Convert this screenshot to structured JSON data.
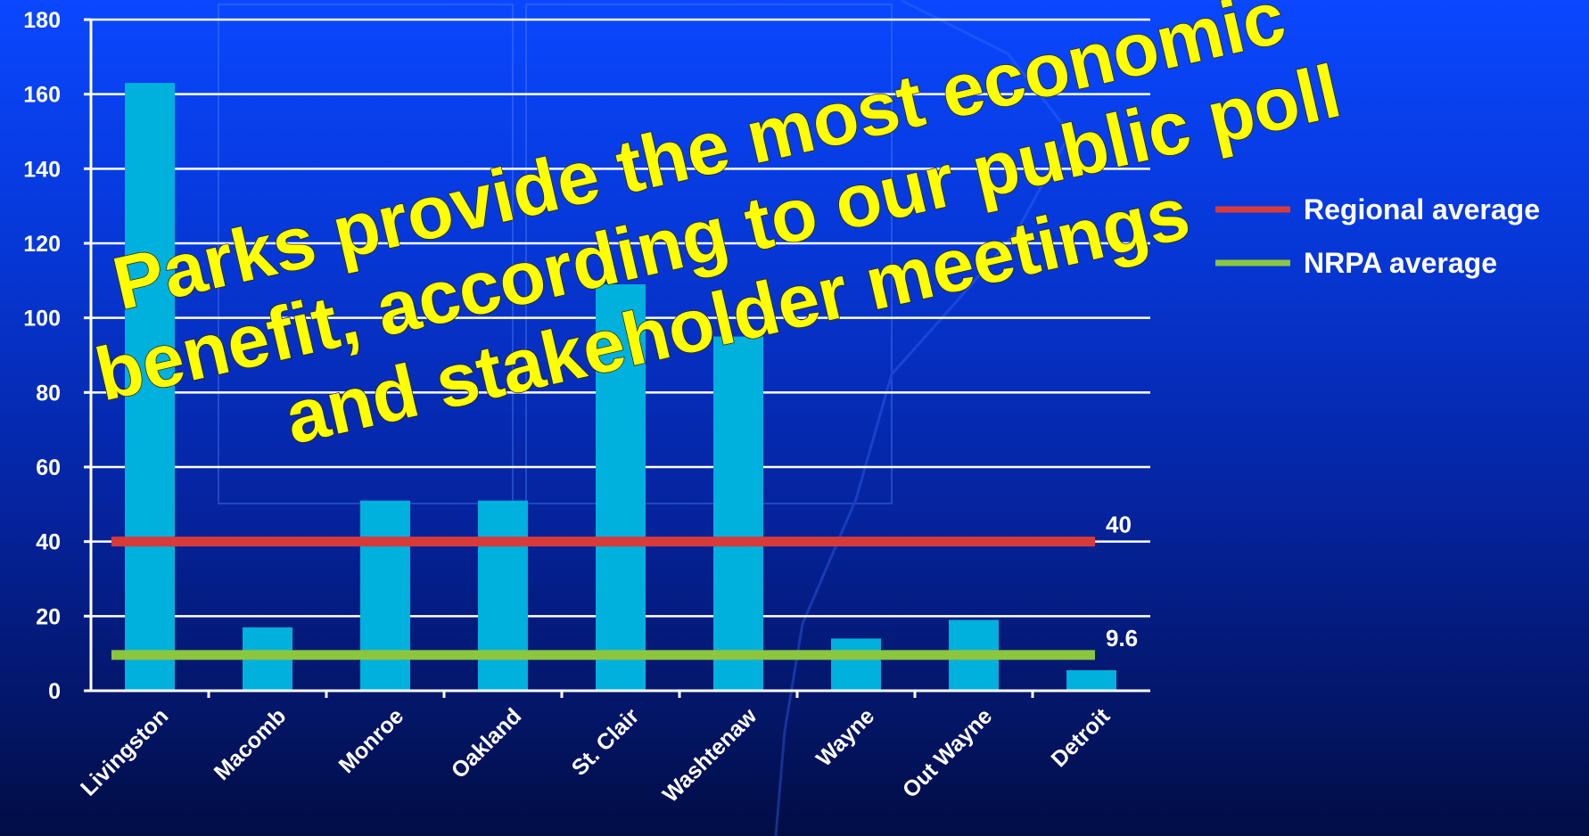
{
  "chart_data": {
    "type": "bar",
    "categories": [
      "Livingston",
      "Macomb",
      "Monroe",
      "Oakland",
      "St. Clair",
      "Washtenaw",
      "Wayne",
      "Out Wayne",
      "Detroit"
    ],
    "values": [
      163,
      17,
      51,
      51,
      109,
      95,
      14,
      19,
      5.5
    ],
    "ylim": [
      0,
      180
    ],
    "yticks": [
      "0",
      "20",
      "40",
      "60",
      "80",
      "100",
      "120",
      "140",
      "160",
      "180"
    ],
    "grid": true,
    "bar_color": "#00b0dd",
    "reference_lines": [
      {
        "name": "Regional average",
        "value": 40,
        "label": "40",
        "color": "#d83a3a"
      },
      {
        "name": "NRPA average",
        "value": 9.6,
        "label": "9.6",
        "color": "#8cc63f"
      }
    ],
    "legend_position": "right",
    "annotation": {
      "lines": [
        "Parks provide the most economic",
        "benefit, according to our public poll",
        "and stakeholder meetings"
      ],
      "color": "#ffff00"
    }
  }
}
